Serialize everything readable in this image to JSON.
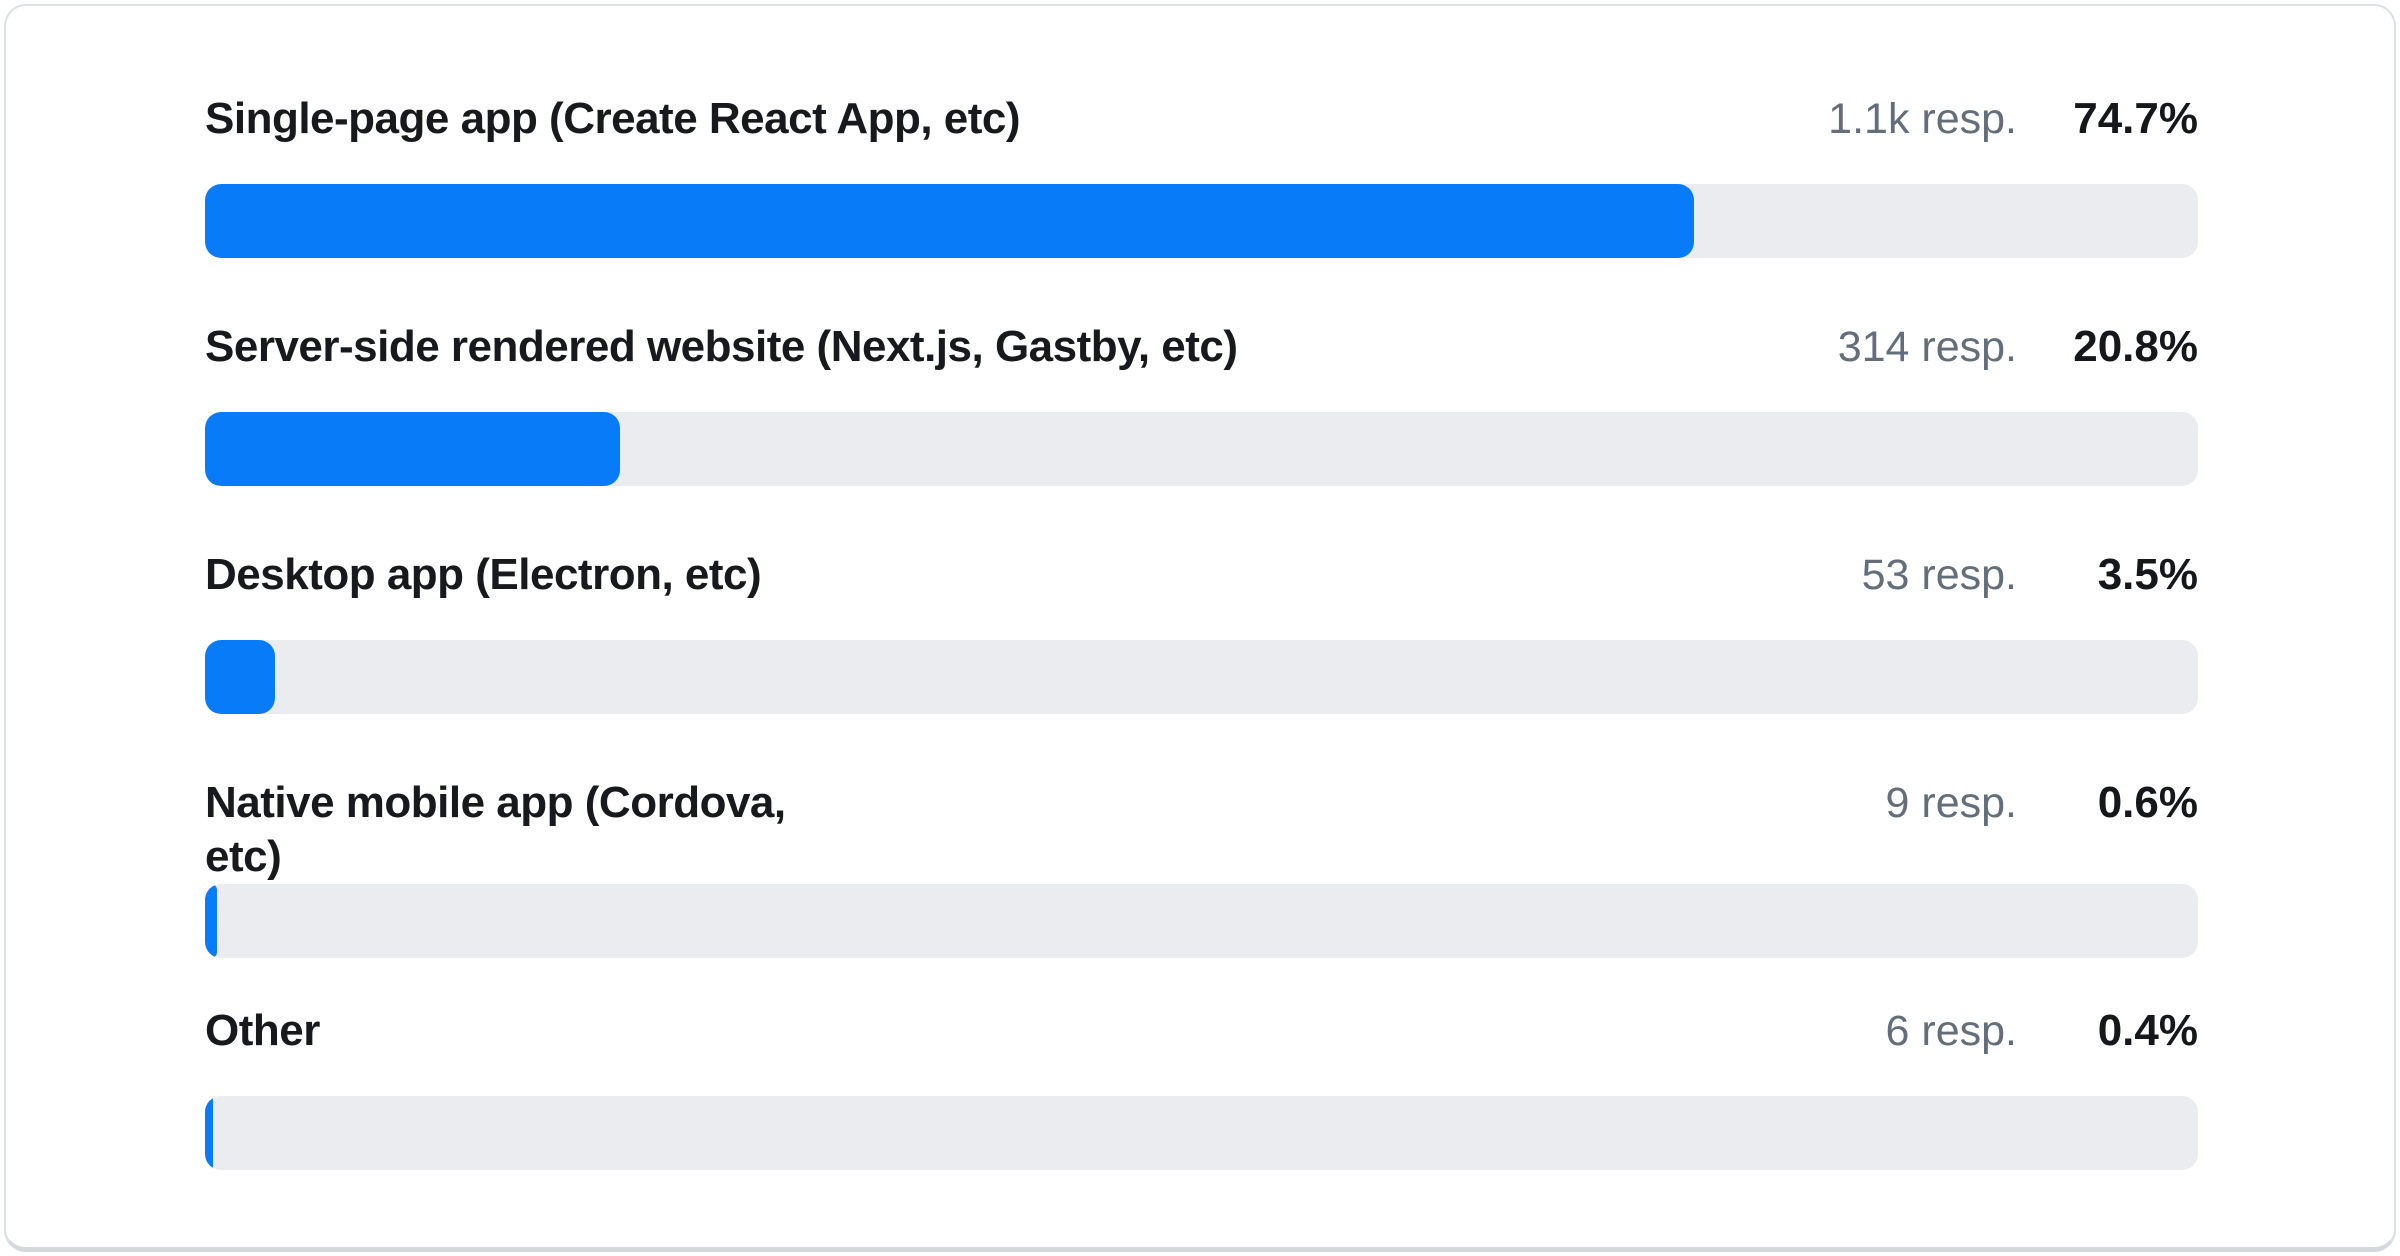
{
  "survey": {
    "rows": [
      {
        "label": "Single-page app (Create React App, etc)",
        "responses_label": "1.1k resp.",
        "percent_label": "74.7%",
        "percent": 74.7
      },
      {
        "label": "Server-side rendered website (Next.js, Gastby, etc)",
        "responses_label": "314 resp.",
        "percent_label": "20.8%",
        "percent": 20.8
      },
      {
        "label": "Desktop app (Electron, etc)",
        "responses_label": "53 resp.",
        "percent_label": "3.5%",
        "percent": 3.5
      },
      {
        "label": "Native mobile app (Cordova, etc)",
        "responses_label": "9 resp.",
        "percent_label": "0.6%",
        "percent": 0.6
      },
      {
        "label": "Other",
        "responses_label": "6 resp.",
        "percent_label": "0.4%",
        "percent": 0.4
      }
    ],
    "colors": {
      "bar_fill": "#087cf8",
      "bar_track": "#eaecef",
      "label_text": "#17191c",
      "responses_text": "#636e7b",
      "percent_text": "#15171a"
    }
  },
  "chart_data": {
    "type": "bar",
    "orientation": "horizontal",
    "title": "",
    "xlabel": "",
    "ylabel": "",
    "xlim": [
      0,
      100
    ],
    "grid": false,
    "legend": false,
    "categories": [
      "Single-page app (Create React App, etc)",
      "Server-side rendered website (Next.js, Gastby, etc)",
      "Desktop app (Electron, etc)",
      "Native mobile app (Cordova, etc)",
      "Other"
    ],
    "series": [
      {
        "name": "percent of responses",
        "unit": "%",
        "values": [
          74.7,
          20.8,
          3.5,
          0.6,
          0.4
        ]
      },
      {
        "name": "responses",
        "unit": "count",
        "values": [
          1100,
          314,
          53,
          9,
          6
        ]
      }
    ],
    "value_labels": [
      "74.7%",
      "20.8%",
      "3.5%",
      "0.6%",
      "0.4%"
    ],
    "count_labels": [
      "1.1k resp.",
      "314 resp.",
      "53 resp.",
      "9 resp.",
      "6 resp."
    ],
    "bar_color": "#087cf8",
    "track_color": "#eaecef"
  }
}
